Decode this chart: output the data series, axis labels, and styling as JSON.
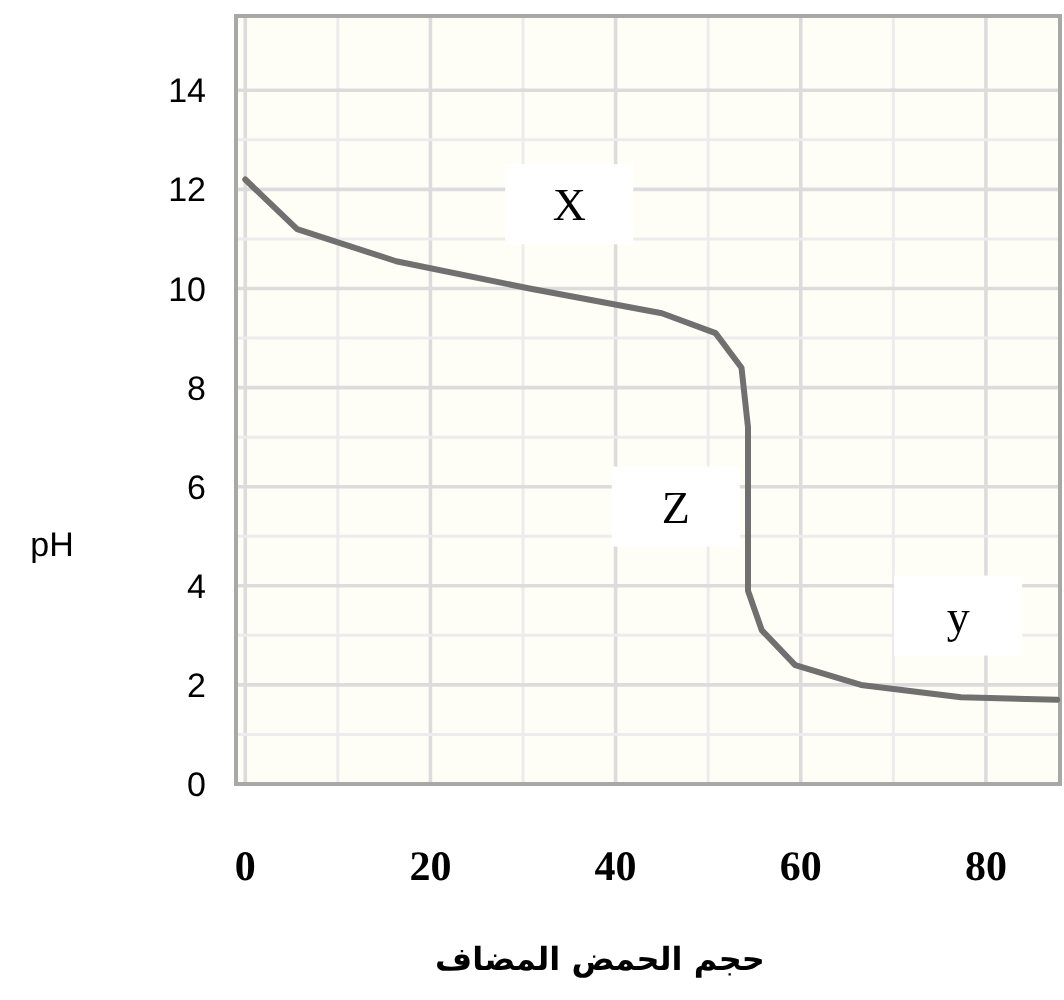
{
  "chart_data": {
    "type": "line",
    "xlabel": "حجم الحمض المضاف",
    "ylabel": "pH",
    "x": [
      0,
      5.6,
      16.3,
      30.7,
      45,
      50.8,
      53.6,
      54.3,
      54.3,
      55.8,
      59.4,
      66.5,
      77.3,
      87.7
    ],
    "values": [
      12.2,
      11.2,
      10.55,
      10.0,
      9.5,
      9.1,
      8.4,
      7.2,
      3.9,
      3.1,
      2.4,
      2.0,
      1.75,
      1.7
    ],
    "color": "#707070",
    "xlim": [
      -1,
      88
    ],
    "ylim": [
      0,
      15.5
    ],
    "xticks": [
      0,
      20,
      40,
      60,
      80
    ],
    "yticks": [
      0,
      2,
      4,
      6,
      8,
      10,
      12,
      14
    ],
    "grid": true,
    "annotations": [
      "X",
      "Z",
      "y"
    ]
  }
}
